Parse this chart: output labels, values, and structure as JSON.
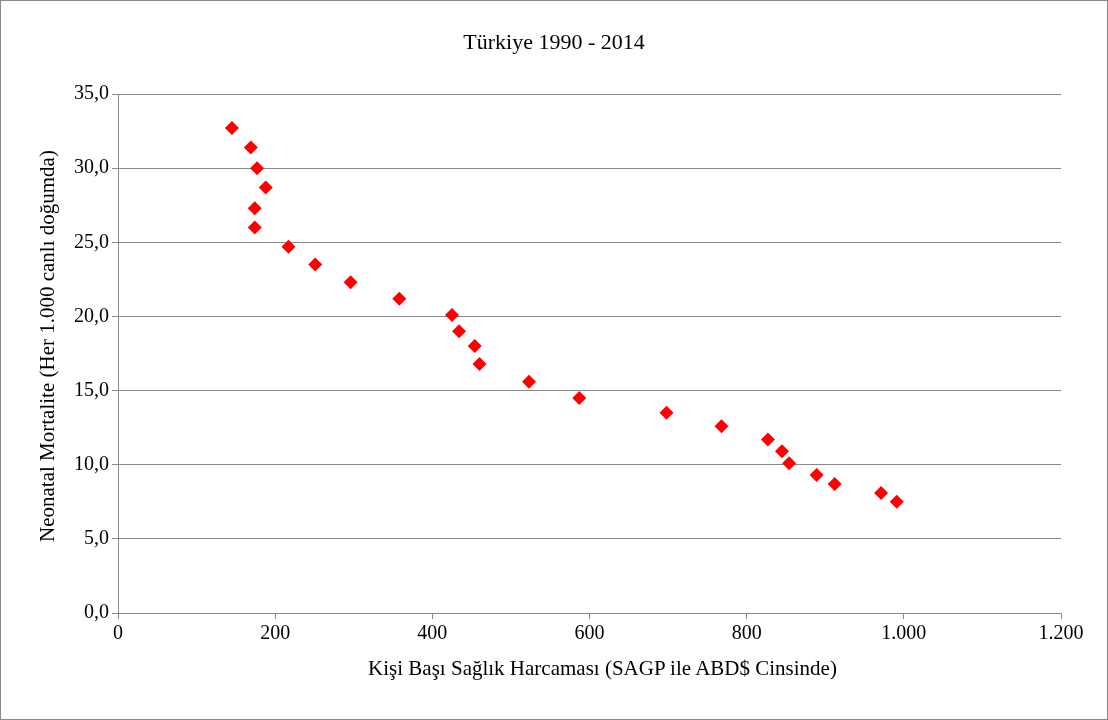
{
  "chart_data": {
    "type": "scatter",
    "title": "Türkiye 1990 - 2014",
    "xlabel": "Kişi Başı Sağlık Harcaması (SAGP ile ABD$ Cinsinde)",
    "ylabel": "Neonatal Mortalite (Her 1.000 canlı doğumda)",
    "x": [
      145,
      169,
      177,
      188,
      174,
      174,
      217,
      251,
      296,
      358,
      425,
      434,
      454,
      460,
      523,
      587,
      698,
      768,
      827,
      845,
      854,
      889,
      912,
      971,
      991
    ],
    "series": [
      {
        "color": "#ff0000",
        "values": [
          32.7,
          31.4,
          30.0,
          28.7,
          27.3,
          26.0,
          24.7,
          23.5,
          22.3,
          21.2,
          20.1,
          19.0,
          18.0,
          16.8,
          15.6,
          14.5,
          13.5,
          12.6,
          11.7,
          10.9,
          10.1,
          9.3,
          8.7,
          8.1,
          7.5
        ]
      }
    ],
    "xlim": [
      0,
      1200
    ],
    "xticks": [
      0,
      200,
      400,
      600,
      800,
      {
        "value": 1000,
        "label": "1.000"
      },
      {
        "value": 1200,
        "label": "1.200"
      }
    ],
    "ylim": [
      0,
      35
    ],
    "yticks": [
      {
        "value": 0,
        "label": "0,0"
      },
      {
        "value": 5,
        "label": "5,0"
      },
      {
        "value": 10,
        "label": "10,0"
      },
      {
        "value": 15,
        "label": "15,0"
      },
      {
        "value": 20,
        "label": "20,0"
      },
      {
        "value": 25,
        "label": "25,0"
      },
      {
        "value": 30,
        "label": "30,0"
      },
      {
        "value": 35,
        "label": "35,0"
      }
    ],
    "grid": "y",
    "legend": false,
    "marker": "diamond"
  }
}
